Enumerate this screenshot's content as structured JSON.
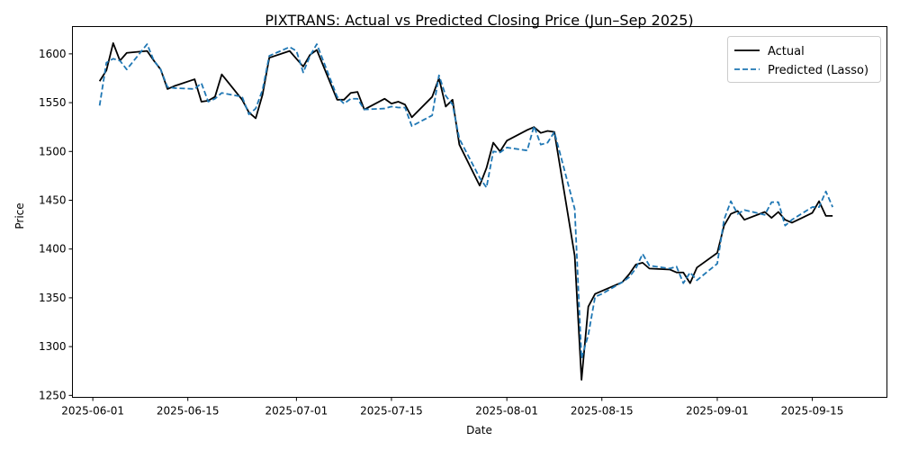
{
  "chart_data": {
    "type": "line",
    "title": "PIXTRANS: Actual vs Predicted Closing Price (Jun–Sep 2025)",
    "xlabel": "Date",
    "ylabel": "Price",
    "xlim": [
      "2025-05-29",
      "2025-09-26"
    ],
    "ylim": [
      1248,
      1628
    ],
    "x_ticks": [
      "2025-06-01",
      "2025-06-15",
      "2025-07-01",
      "2025-07-15",
      "2025-08-01",
      "2025-08-15",
      "2025-09-01",
      "2025-09-15"
    ],
    "y_ticks": [
      1250,
      1300,
      1350,
      1400,
      1450,
      1500,
      1550,
      1600
    ],
    "grid": false,
    "legend": {
      "position": "top-right",
      "entries": [
        "Actual",
        "Predicted (Lasso)"
      ]
    },
    "x": [
      "2025-06-02",
      "2025-06-03",
      "2025-06-04",
      "2025-06-05",
      "2025-06-06",
      "2025-06-09",
      "2025-06-10",
      "2025-06-11",
      "2025-06-12",
      "2025-06-13",
      "2025-06-16",
      "2025-06-17",
      "2025-06-18",
      "2025-06-19",
      "2025-06-20",
      "2025-06-23",
      "2025-06-24",
      "2025-06-25",
      "2025-06-26",
      "2025-06-27",
      "2025-06-30",
      "2025-07-01",
      "2025-07-02",
      "2025-07-03",
      "2025-07-04",
      "2025-07-07",
      "2025-07-08",
      "2025-07-09",
      "2025-07-10",
      "2025-07-11",
      "2025-07-14",
      "2025-07-15",
      "2025-07-16",
      "2025-07-17",
      "2025-07-18",
      "2025-07-21",
      "2025-07-22",
      "2025-07-23",
      "2025-07-24",
      "2025-07-25",
      "2025-07-28",
      "2025-07-29",
      "2025-07-30",
      "2025-07-31",
      "2025-08-01",
      "2025-08-04",
      "2025-08-05",
      "2025-08-06",
      "2025-08-07",
      "2025-08-08",
      "2025-08-11",
      "2025-08-12",
      "2025-08-13",
      "2025-08-14",
      "2025-08-15",
      "2025-08-18",
      "2025-08-19",
      "2025-08-20",
      "2025-08-21",
      "2025-08-22",
      "2025-08-25",
      "2025-08-26",
      "2025-08-27",
      "2025-08-28",
      "2025-08-29",
      "2025-09-01",
      "2025-09-02",
      "2025-09-03",
      "2025-09-04",
      "2025-09-05",
      "2025-09-08",
      "2025-09-09",
      "2025-09-10",
      "2025-09-11",
      "2025-09-12",
      "2025-09-15",
      "2025-09-16",
      "2025-09-17",
      "2025-09-18"
    ],
    "series": [
      {
        "name": "Actual",
        "color": "#000000",
        "style": "solid",
        "values": [
          1572,
          1583,
          1611,
          1593,
          1601,
          1603,
          1593,
          1584,
          1564,
          1567,
          1574,
          1551,
          1552,
          1556,
          1579,
          1553,
          1540,
          1534,
          1558,
          1596,
          1603,
          1595,
          1587,
          1599,
          1604,
          1553,
          1553,
          1560,
          1561,
          1543,
          1554,
          1549,
          1551,
          1548,
          1535,
          1556,
          1575,
          1546,
          1553,
          1507,
          1465,
          1483,
          1509,
          1500,
          1511,
          1522,
          1525,
          1519,
          1521,
          1520,
          1393,
          1266,
          1341,
          1354,
          1357,
          1366,
          1374,
          1384,
          1386,
          1380,
          1379,
          1376,
          1376,
          1365,
          1381,
          1396,
          1424,
          1436,
          1439,
          1430,
          1438,
          1432,
          1438,
          1430,
          1427,
          1437,
          1449,
          1434,
          1434
        ]
      },
      {
        "name": "Predicted (Lasso)",
        "color": "#1f77b4",
        "style": "dashed",
        "values": [
          1547,
          1591,
          1595,
          1593,
          1584,
          1610,
          1593,
          1584,
          1566,
          1565,
          1564,
          1570,
          1551,
          1554,
          1560,
          1556,
          1538,
          1544,
          1563,
          1598,
          1607,
          1603,
          1581,
          1598,
          1610,
          1556,
          1549,
          1554,
          1554,
          1543,
          1544,
          1546,
          1545,
          1545,
          1526,
          1537,
          1578,
          1557,
          1548,
          1513,
          1473,
          1463,
          1500,
          1499,
          1504,
          1501,
          1526,
          1507,
          1509,
          1520,
          1441,
          1288,
          1312,
          1351,
          1354,
          1366,
          1371,
          1380,
          1395,
          1383,
          1380,
          1382,
          1365,
          1376,
          1368,
          1385,
          1430,
          1449,
          1436,
          1440,
          1435,
          1448,
          1448,
          1424,
          1430,
          1443,
          1443,
          1459,
          1443
        ]
      }
    ]
  }
}
